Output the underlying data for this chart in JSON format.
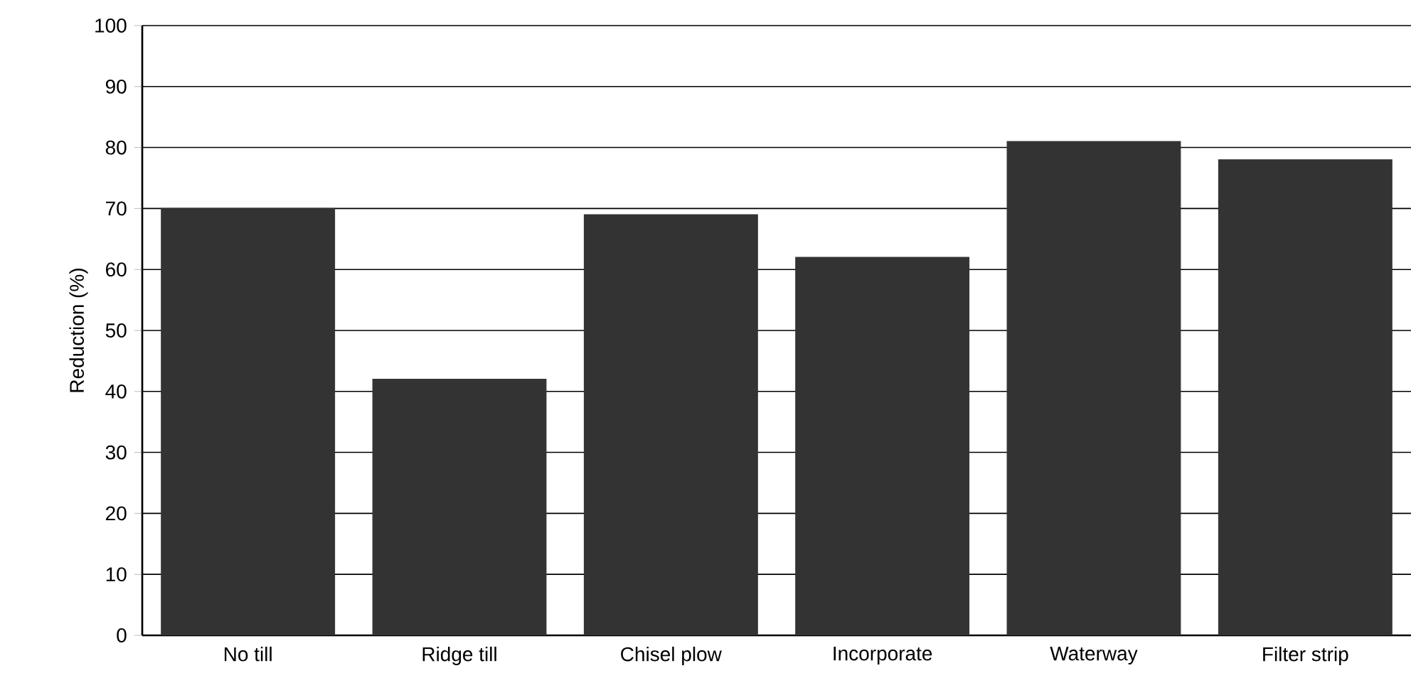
{
  "chart_data": {
    "type": "bar",
    "ylabel": "Reduction (%)",
    "categories": [
      "No till",
      "Ridge till",
      "Chisel plow",
      "Incorporate",
      "Waterway",
      "Filter strip"
    ],
    "values": [
      70,
      42,
      69,
      62,
      81,
      78
    ],
    "color": "#333333",
    "ylim": [
      0,
      100
    ],
    "yticks": [
      0,
      10,
      20,
      30,
      40,
      50,
      60,
      70,
      80,
      90,
      100
    ],
    "grid": "y"
  }
}
